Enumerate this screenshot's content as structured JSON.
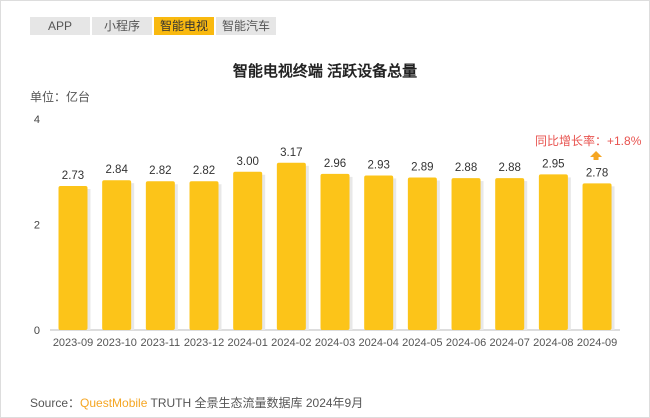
{
  "tabs": [
    {
      "label": "APP"
    },
    {
      "label": "小程序"
    },
    {
      "label": "智能电视",
      "active": true
    },
    {
      "label": "智能汽车"
    }
  ],
  "unit_label": "单位：亿台",
  "annotation": "同比增长率：+1.8%",
  "source": {
    "prefix": "Source：",
    "brand": "QuestMobile",
    "suffix": " TRUTH 全景生态流量数据库 2024年9月"
  },
  "colors": {
    "bar": "#fcc419",
    "accent": "#f9b90f",
    "annotation": "#e8534f",
    "brand": "#f5a623"
  },
  "chart_data": {
    "type": "bar",
    "title": "智能电视终端 活跃设备总量",
    "xlabel": "",
    "ylabel": "单位：亿台",
    "ylim": [
      0,
      4
    ],
    "yticks": [
      0,
      2,
      4
    ],
    "grid": false,
    "categories": [
      "2023-09",
      "2023-10",
      "2023-11",
      "2023-12",
      "2024-01",
      "2024-02",
      "2024-03",
      "2024-04",
      "2024-05",
      "2024-06",
      "2024-07",
      "2024-08",
      "2024-09"
    ],
    "values": [
      2.73,
      2.84,
      2.82,
      2.82,
      3.0,
      3.17,
      2.96,
      2.93,
      2.89,
      2.88,
      2.88,
      2.95,
      2.78
    ],
    "value_labels": [
      "2.73",
      "2.84",
      "2.82",
      "2.82",
      "3.00",
      "3.17",
      "2.96",
      "2.93",
      "2.89",
      "2.88",
      "2.88",
      "2.95",
      "2.78"
    ]
  }
}
